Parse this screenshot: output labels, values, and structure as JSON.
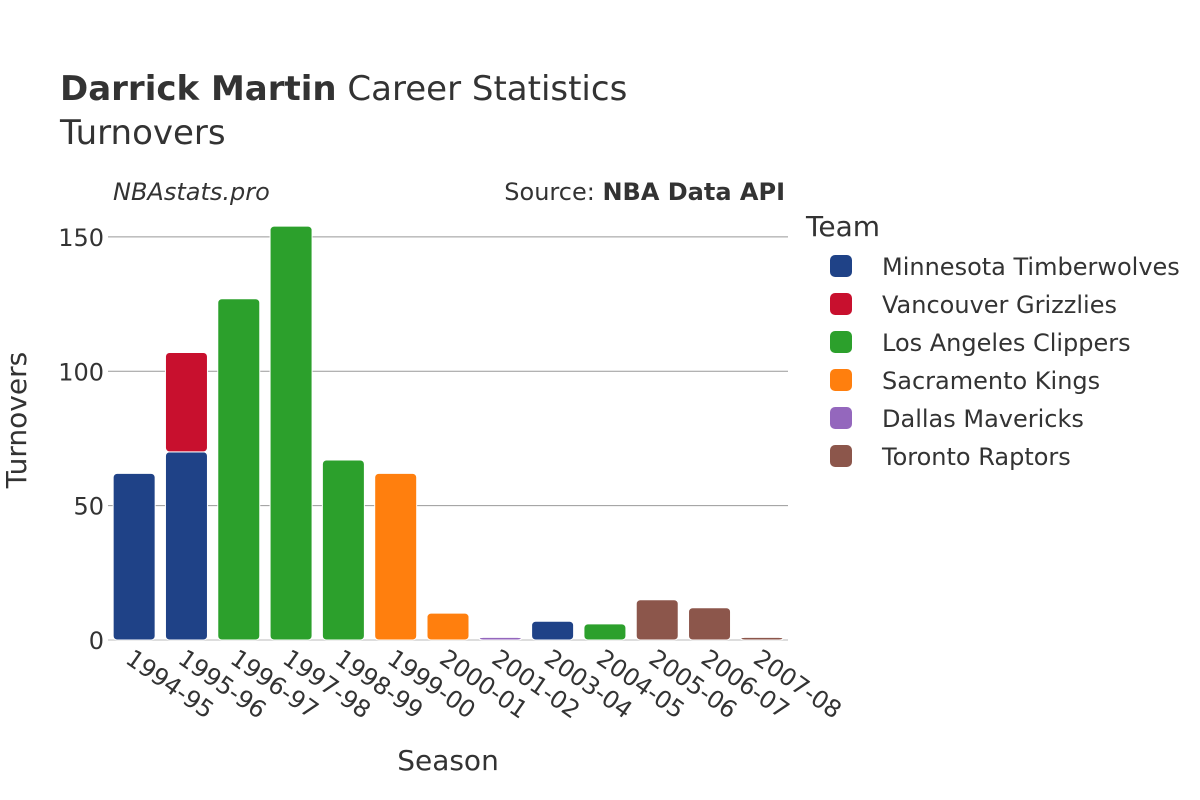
{
  "chart_data": {
    "type": "bar",
    "stacked": true,
    "title_bold": "Darrick Martin",
    "title_rest": " Career Statistics",
    "subtitle": "Turnovers",
    "watermark": "NBAstats.pro",
    "source_prefix": "Source: ",
    "source_name": "NBA Data API",
    "xlabel": "Season",
    "ylabel": "Turnovers",
    "ylim": [
      0,
      160
    ],
    "yticks": [
      0,
      50,
      100,
      150
    ],
    "grid": true,
    "legend_title": "Team",
    "legend_position": "right",
    "categories": [
      "1994-95",
      "1995-96",
      "1996-97",
      "1997-98",
      "1998-99",
      "1999-00",
      "2000-01",
      "2001-02",
      "2003-04",
      "2004-05",
      "2005-06",
      "2006-07",
      "2007-08"
    ],
    "series": [
      {
        "name": "Minnesota Timberwolves",
        "color": "#1f4287",
        "values": [
          62,
          70,
          0,
          0,
          0,
          0,
          0,
          0,
          7,
          0,
          0,
          0,
          0
        ]
      },
      {
        "name": "Vancouver Grizzlies",
        "color": "#c8102e",
        "values": [
          0,
          37,
          0,
          0,
          0,
          0,
          0,
          0,
          0,
          0,
          0,
          0,
          0
        ]
      },
      {
        "name": "Los Angeles Clippers",
        "color": "#2ca02c",
        "values": [
          0,
          0,
          127,
          154,
          67,
          0,
          0,
          0,
          0,
          6,
          0,
          0,
          0
        ]
      },
      {
        "name": "Sacramento Kings",
        "color": "#ff7f0e",
        "values": [
          0,
          0,
          0,
          0,
          0,
          62,
          10,
          0,
          0,
          0,
          0,
          0,
          0
        ]
      },
      {
        "name": "Dallas Mavericks",
        "color": "#9467bd",
        "values": [
          0,
          0,
          0,
          0,
          0,
          0,
          0,
          1,
          0,
          0,
          0,
          0,
          0
        ]
      },
      {
        "name": "Toronto Raptors",
        "color": "#8c564b",
        "values": [
          0,
          0,
          0,
          0,
          0,
          0,
          0,
          0,
          0,
          0,
          15,
          12,
          1
        ]
      }
    ]
  }
}
